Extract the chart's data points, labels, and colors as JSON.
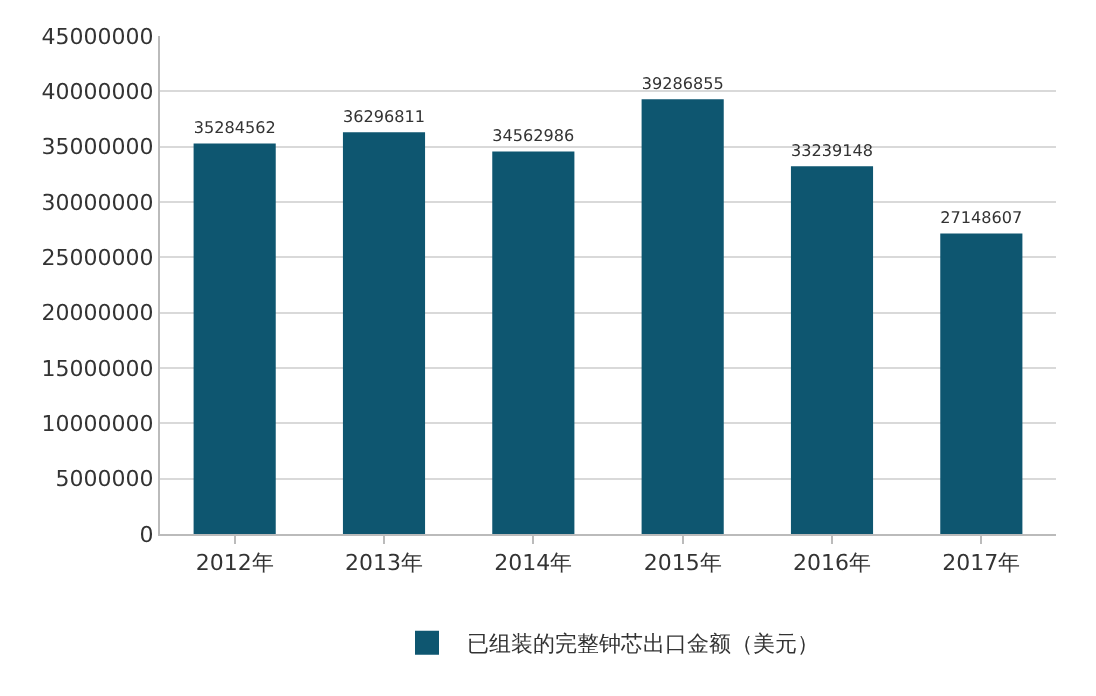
{
  "chart_data": {
    "type": "bar",
    "categories": [
      "2012年",
      "2013年",
      "2014年",
      "2015年",
      "2016年",
      "2017年"
    ],
    "series": [
      {
        "name": "已组装的完整钟芯出口金额（美元）",
        "color": "#0e5670",
        "values": [
          35284562,
          36296811,
          34562986,
          39286855,
          33239148,
          27148607
        ]
      }
    ],
    "ylim": [
      0,
      45000000
    ],
    "yticks": [
      0,
      5000000,
      10000000,
      15000000,
      20000000,
      25000000,
      30000000,
      35000000,
      40000000,
      45000000
    ],
    "grid": "y",
    "data_labels": true,
    "legend": "bottom"
  }
}
